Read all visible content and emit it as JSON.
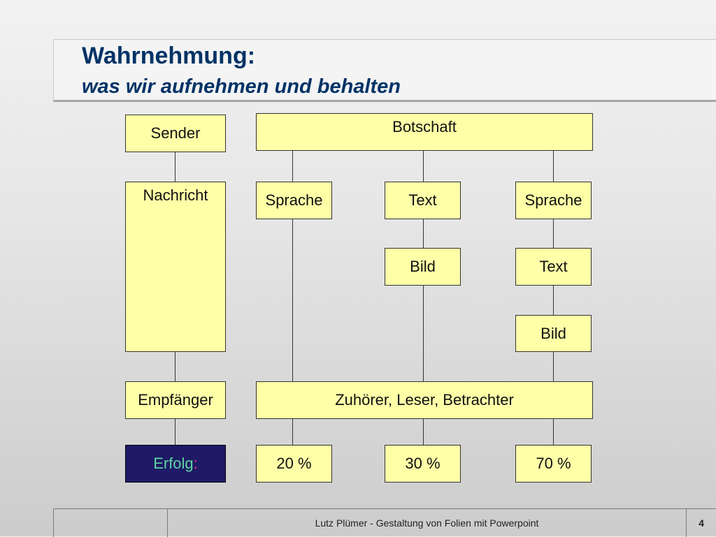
{
  "title": "Wahrnehmung:",
  "subtitle": "was wir aufnehmen und behalten",
  "diagram": {
    "sender": "Sender",
    "nachricht": "Nachricht",
    "empfaenger": "Empfänger",
    "erfolg": "Erfolg",
    "erfolg_colon": ":",
    "botschaft": "Botschaft",
    "col1_sprache": "Sprache",
    "col2_text": "Text",
    "col2_bild": "Bild",
    "col3_sprache": "Sprache",
    "col3_text": "Text",
    "col3_bild": "Bild",
    "audience": "Zuhörer, Leser, Betrachter",
    "pct1": "20 %",
    "pct2": "30 %",
    "pct3": "70 %"
  },
  "footer": {
    "text": "Lutz Plümer  -  Gestaltung von Folien mit Powerpoint",
    "page": "4"
  },
  "colors": {
    "box_fill": "#ffffa8",
    "dark_box_fill": "#1e1a66",
    "title_color": "#003366",
    "erfolg_text": "#5fd4a0",
    "erfolg_colon": "#ff3399"
  }
}
